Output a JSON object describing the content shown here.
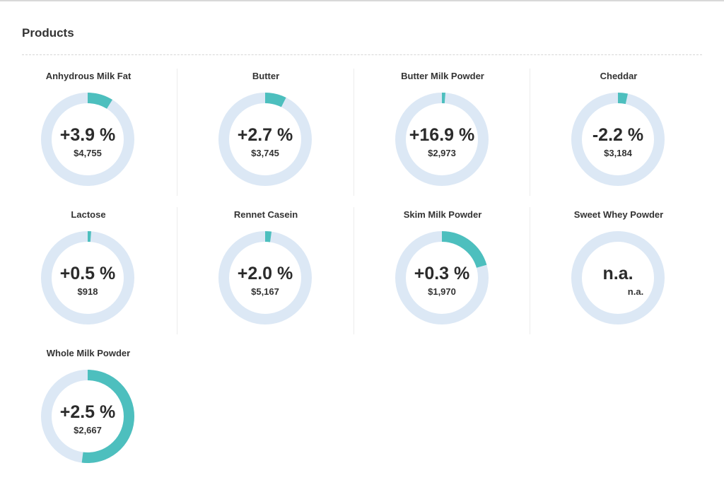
{
  "section": {
    "title": "Products"
  },
  "colors": {
    "track": "#dce8f5",
    "fill": "#4dbfbe"
  },
  "products": [
    {
      "name": "Anhydrous Milk Fat",
      "change": "+3.9 %",
      "price": "$4,755",
      "fraction": 0.089
    },
    {
      "name": "Butter",
      "change": "+2.7 %",
      "price": "$3,745",
      "fraction": 0.074
    },
    {
      "name": "Butter Milk Powder",
      "change": "+16.9 %",
      "price": "$2,973",
      "fraction": 0.012
    },
    {
      "name": "Cheddar",
      "change": "-2.2 %",
      "price": "$3,184",
      "fraction": 0.034
    },
    {
      "name": "Lactose",
      "change": "+0.5 %",
      "price": "$918",
      "fraction": 0.012
    },
    {
      "name": "Rennet Casein",
      "change": "+2.0 %",
      "price": "$5,167",
      "fraction": 0.022
    },
    {
      "name": "Skim Milk Powder",
      "change": "+0.3 %",
      "price": "$1,970",
      "fraction": 0.205
    },
    {
      "name": "Sweet Whey Powder",
      "change": "n.a.",
      "price": "n.a.",
      "fraction": 0
    },
    {
      "name": "Whole Milk Powder",
      "change": "+2.5 %",
      "price": "$2,667",
      "fraction": 0.52
    }
  ]
}
